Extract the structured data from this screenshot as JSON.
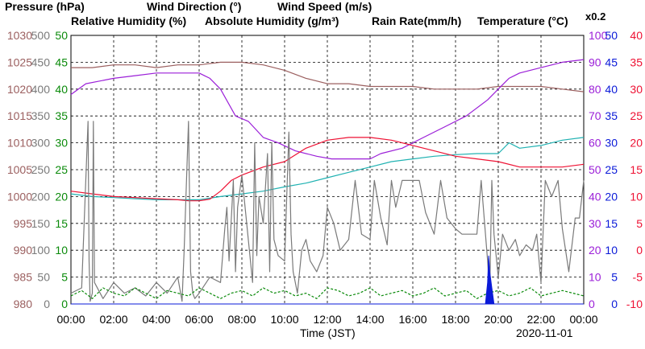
{
  "chart_data": {
    "type": "line",
    "date": "2020-11-01",
    "xlabel": "Time (JST)",
    "x_ticks": [
      "00:00",
      "02:00",
      "04:00",
      "06:00",
      "08:00",
      "10:00",
      "12:00",
      "14:00",
      "16:00",
      "18:00",
      "20:00",
      "22:00",
      "00:00"
    ],
    "xlim": [
      0,
      24
    ],
    "axes": {
      "pressure": {
        "label": "Pressure (hPa)",
        "color": "#9b5f5f",
        "range": [
          980,
          1030
        ],
        "ticks": [
          980,
          985,
          990,
          995,
          1000,
          1005,
          1010,
          1015,
          1020,
          1025,
          1030
        ]
      },
      "wind_direction": {
        "label": "Wind Direction (°)",
        "color": "#7a7a7a",
        "range": [
          0,
          500
        ],
        "ticks": [
          0,
          50,
          100,
          150,
          200,
          250,
          300,
          350,
          400,
          450,
          500
        ]
      },
      "wind_speed": {
        "label": "Wind Speed (m/s)",
        "color": "#0a8a0a",
        "range": [
          0,
          50
        ],
        "ticks": [
          0,
          5,
          10,
          15,
          20,
          25,
          30,
          35,
          40,
          45,
          50
        ]
      },
      "relative_humidity": {
        "label": "Relative Humidity (%)",
        "color": "#9b1fd8",
        "range": [
          0,
          100
        ],
        "ticks": [
          0,
          10,
          20,
          30,
          40,
          50,
          60,
          70,
          80,
          90,
          100
        ]
      },
      "absolute_humidity": {
        "label": "Absolute Humidity (g/m³)",
        "color": "#20b2b2",
        "scale_note": "x0.2",
        "range": [
          0,
          50
        ],
        "ticks": [
          0,
          5,
          10,
          15,
          20,
          25,
          30,
          35,
          40,
          45,
          50
        ]
      },
      "rain_rate": {
        "label": "Rain Rate(mm/h)",
        "color": "#0a1ad8",
        "range": [
          0,
          50
        ],
        "ticks": [
          0,
          5,
          10,
          15,
          20,
          25,
          30,
          35,
          40,
          45,
          50
        ]
      },
      "temperature": {
        "label": "Temperature (°C)",
        "color": "#ee1133",
        "range": [
          -10,
          40
        ],
        "ticks": [
          -10,
          -5,
          0,
          5,
          10,
          15,
          20,
          25,
          30,
          35,
          40
        ]
      }
    },
    "series": [
      {
        "name": "Pressure (hPa)",
        "axis": "pressure",
        "x": [
          0,
          1,
          2,
          3,
          4,
          5,
          6,
          7,
          8,
          9,
          10,
          11,
          12,
          13,
          14,
          15,
          16,
          17,
          18,
          19,
          20,
          21,
          22,
          23,
          24
        ],
        "y": [
          1024,
          1024,
          1024.5,
          1024.5,
          1024,
          1024.5,
          1024.5,
          1025,
          1025,
          1024.5,
          1023.5,
          1022,
          1021,
          1021,
          1020.5,
          1020.5,
          1020.5,
          1020,
          1020,
          1020,
          1020.5,
          1020.5,
          1020.5,
          1020,
          1019.5
        ]
      },
      {
        "name": "Relative Humidity (%)",
        "axis": "relative_humidity",
        "x": [
          0,
          0.7,
          2,
          3,
          4,
          5,
          6,
          6.5,
          7,
          7.7,
          8.3,
          9,
          9.7,
          10.5,
          11.5,
          12.2,
          13,
          14,
          14.5,
          15.5,
          16.5,
          17.5,
          18.5,
          19.5,
          20,
          20.5,
          21,
          22,
          23,
          24
        ],
        "y": [
          78,
          82,
          84,
          85,
          86,
          86,
          86,
          84,
          80,
          70,
          68,
          62,
          60,
          57,
          55,
          54,
          54,
          54,
          56,
          58,
          62,
          66,
          70,
          76,
          80,
          84,
          86,
          88,
          90,
          91
        ]
      },
      {
        "name": "Absolute Humidity (g/m³)",
        "axis": "absolute_humidity",
        "x": [
          0,
          1,
          2,
          3,
          4,
          5,
          6,
          7,
          8,
          9,
          10,
          11,
          12,
          13,
          14,
          15,
          16,
          17,
          18,
          19,
          20,
          20.5,
          21,
          22,
          23,
          24
        ],
        "y": [
          20.5,
          20,
          19.8,
          19.6,
          19.4,
          19.4,
          19.4,
          20,
          20.5,
          21,
          21.8,
          22.5,
          23.5,
          24.5,
          25.5,
          26.5,
          27,
          27.5,
          27.8,
          28,
          28,
          30,
          29,
          29.5,
          30.5,
          31
        ]
      },
      {
        "name": "Temperature (°C)",
        "axis": "temperature",
        "x": [
          0,
          1,
          2,
          3,
          4,
          5,
          5.5,
          6,
          6.5,
          7,
          7.5,
          8,
          9,
          10,
          11,
          12,
          13,
          14,
          15,
          16,
          17,
          18,
          19,
          20,
          21,
          22,
          23,
          24
        ],
        "y": [
          11,
          10.5,
          10,
          9.8,
          9.6,
          9.4,
          9.2,
          9.2,
          9.5,
          11,
          13,
          14,
          15.5,
          16.5,
          19,
          20.5,
          21,
          21,
          20.5,
          19.5,
          18.5,
          17.5,
          17,
          16.5,
          15.5,
          15.5,
          15.5,
          16
        ]
      },
      {
        "name": "Wind Direction (°)",
        "axis": "wind_direction",
        "x": [
          0,
          0.5,
          0.8,
          0.85,
          0.9,
          1.0,
          1.05,
          1.1,
          1.5,
          2,
          2.5,
          3,
          3.5,
          4,
          4.5,
          5,
          5.2,
          5.3,
          5.5,
          5.6,
          5.7,
          5.8,
          6,
          6.5,
          7,
          7.2,
          7.3,
          7.4,
          7.6,
          7.7,
          7.8,
          8,
          8.5,
          8.6,
          8.7,
          8.8,
          9,
          9.2,
          9.3,
          9.4,
          9.5,
          9.7,
          10,
          10.2,
          10.3,
          10.4,
          10.6,
          10.8,
          11,
          11.2,
          11.5,
          11.8,
          12,
          12.3,
          12.6,
          13,
          13.3,
          13.6,
          14,
          14.2,
          14.5,
          14.8,
          15,
          15.2,
          15.5,
          15.8,
          16,
          16.3,
          16.6,
          17,
          17.3,
          17.6,
          18,
          18.3,
          18.6,
          19,
          19.2,
          19.5,
          19.6,
          19.7,
          19.8,
          20,
          20.2,
          20.5,
          20.8,
          21,
          21.3,
          21.6,
          21.8,
          22,
          22.2,
          22.5,
          22.8,
          23,
          23.3,
          23.6,
          23.8,
          24
        ],
        "y": [
          20,
          30,
          340,
          80,
          5,
          20,
          340,
          40,
          10,
          40,
          20,
          30,
          15,
          40,
          20,
          50,
          5,
          100,
          340,
          60,
          20,
          10,
          20,
          50,
          40,
          140,
          180,
          80,
          230,
          60,
          180,
          240,
          40,
          300,
          90,
          200,
          150,
          280,
          60,
          300,
          120,
          90,
          80,
          320,
          130,
          60,
          20,
          100,
          120,
          80,
          60,
          90,
          180,
          150,
          100,
          120,
          230,
          130,
          120,
          230,
          160,
          110,
          230,
          180,
          230,
          230,
          230,
          230,
          170,
          130,
          230,
          160,
          140,
          130,
          130,
          130,
          230,
          80,
          20,
          230,
          130,
          50,
          130,
          100,
          120,
          90,
          110,
          100,
          130,
          40,
          230,
          200,
          230,
          140,
          60,
          160,
          160,
          230
        ]
      },
      {
        "name": "Wind Speed (m/s)",
        "axis": "wind_speed",
        "x": [
          0,
          0.5,
          1,
          1.5,
          2,
          2.5,
          3,
          3.5,
          4,
          4.5,
          5,
          5.5,
          6,
          6.5,
          7,
          7.5,
          8,
          8.5,
          9,
          9.5,
          10,
          10.5,
          11,
          11.5,
          12,
          12.5,
          13,
          13.5,
          14,
          14.5,
          15,
          15.5,
          16,
          16.5,
          17,
          17.5,
          18,
          18.5,
          19,
          19.5,
          20,
          20.5,
          21,
          21.5,
          22,
          22.5,
          23,
          23.5,
          24
        ],
        "y": [
          1.5,
          2.5,
          1,
          3,
          2,
          1.5,
          3,
          2,
          1,
          2.5,
          2,
          1.5,
          3,
          2,
          1,
          2,
          2.5,
          1.5,
          3,
          2,
          2.5,
          1.5,
          2,
          1,
          3,
          2.5,
          1.5,
          2,
          3,
          1.5,
          2,
          2.5,
          1.5,
          2,
          3,
          1.5,
          2,
          2.5,
          1,
          2,
          2.5,
          1.5,
          2,
          3,
          1.5,
          2,
          2.5,
          2,
          1.5
        ]
      },
      {
        "name": "Rain Rate(mm/h)",
        "axis": "rain_rate",
        "x": [
          0,
          19.4,
          19.5,
          19.55,
          19.6,
          19.7,
          19.8,
          24
        ],
        "y": [
          0,
          0,
          4,
          9,
          6,
          3,
          0,
          0
        ]
      }
    ]
  }
}
